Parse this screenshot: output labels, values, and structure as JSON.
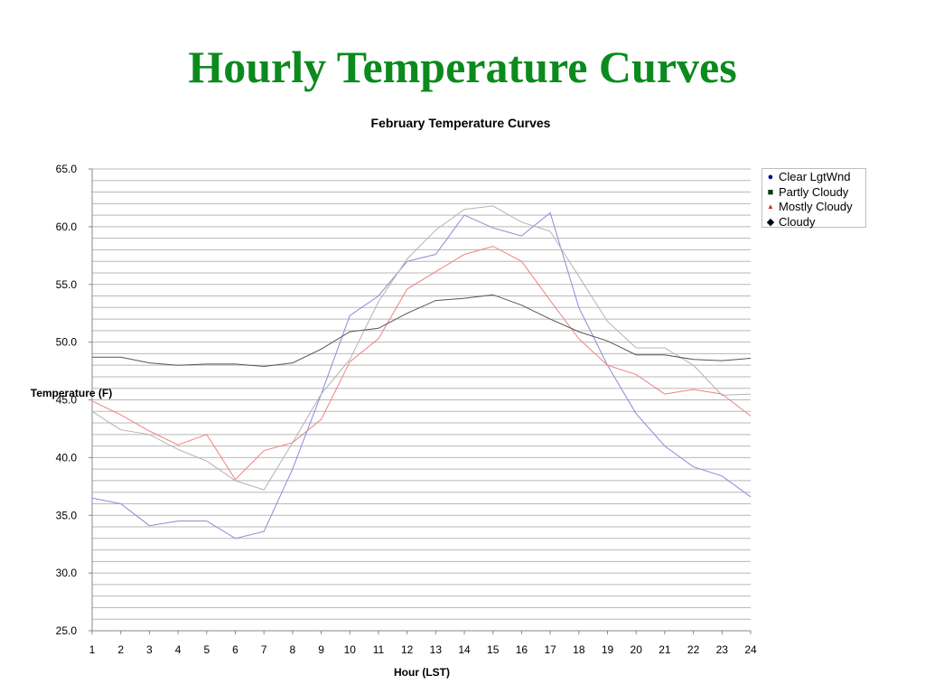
{
  "slide": {
    "title": "Hourly Temperature Curves"
  },
  "chart_data": {
    "type": "line",
    "title": "February Temperature Curves",
    "xlabel": "Hour (LST)",
    "ylabel": "Temperature (F)",
    "x": [
      1,
      2,
      3,
      4,
      5,
      6,
      7,
      8,
      9,
      10,
      11,
      12,
      13,
      14,
      15,
      16,
      17,
      18,
      19,
      20,
      21,
      22,
      23,
      24
    ],
    "ylim": [
      25.0,
      65.0
    ],
    "yticks": [
      "65.0",
      "60.0",
      "55.0",
      "50.0",
      "45.0",
      "40.0",
      "35.0",
      "30.0",
      "25.0"
    ],
    "xticks": [
      "1",
      "2",
      "3",
      "4",
      "5",
      "6",
      "7",
      "8",
      "9",
      "10",
      "11",
      "12",
      "13",
      "14",
      "15",
      "16",
      "17",
      "18",
      "19",
      "20",
      "21",
      "22",
      "23",
      "24"
    ],
    "grid": true,
    "legend_position": "right",
    "series": [
      {
        "name": "Clear LgtWnd",
        "marker": "circle",
        "marker_color": "#0a0a8c",
        "line_color": "#8a8ad8",
        "values": [
          36.5,
          36.0,
          34.1,
          34.5,
          34.5,
          33.0,
          33.6,
          39.0,
          45.5,
          52.3,
          54.0,
          57.0,
          57.6,
          61.0,
          59.9,
          59.2,
          61.2,
          53.0,
          48.0,
          43.8,
          41.0,
          39.2,
          38.4,
          36.6
        ]
      },
      {
        "name": "Partly Cloudy",
        "marker": "square",
        "marker_color": "#0d3d0d",
        "line_color": "#b3b3b3",
        "values": [
          44.0,
          42.4,
          42.0,
          40.7,
          39.7,
          38.0,
          37.2,
          41.3,
          45.5,
          48.5,
          53.5,
          57.2,
          59.7,
          61.5,
          61.8,
          60.4,
          59.6,
          55.7,
          51.8,
          49.5,
          49.5,
          48.0,
          45.4,
          45.5
        ]
      },
      {
        "name": "Mostly Cloudy",
        "marker": "triangle",
        "marker_color": "#e02020",
        "line_color": "#f08080",
        "values": [
          44.9,
          43.7,
          42.3,
          41.1,
          42.0,
          38.1,
          40.6,
          41.3,
          43.3,
          48.3,
          50.3,
          54.6,
          56.1,
          57.6,
          58.3,
          57.0,
          53.6,
          50.3,
          48.0,
          47.2,
          45.5,
          45.9,
          45.5,
          43.6
        ]
      },
      {
        "name": "Cloudy",
        "marker": "diamond",
        "marker_color": "#000000",
        "line_color": "#555555",
        "values": [
          48.7,
          48.7,
          48.2,
          48.0,
          48.1,
          48.1,
          47.9,
          48.2,
          49.4,
          50.9,
          51.2,
          52.5,
          53.6,
          53.8,
          54.1,
          53.2,
          52.0,
          50.9,
          50.1,
          48.9,
          48.9,
          48.5,
          48.4,
          48.6
        ]
      }
    ]
  }
}
